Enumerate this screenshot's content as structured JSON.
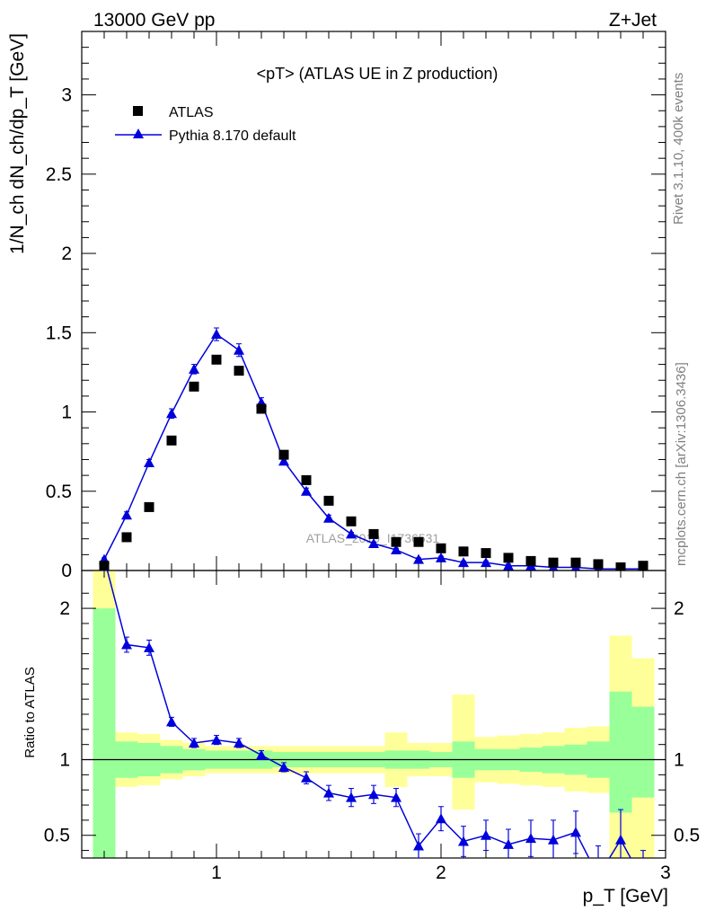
{
  "header": {
    "left": "13000 GeV pp",
    "right": "Z+Jet"
  },
  "side": {
    "rivet": "Rivet 3.1.10,  400k events",
    "mcplots": "mcplots.cern.ch [arXiv:1306.3436]"
  },
  "watermark": "ATLAS_2019_I1736531",
  "chart_data": [
    {
      "type": "scatter",
      "title": "<pT> (ATLAS UE in Z production)",
      "ylabel": "1/N_ch dN_ch/dp_T [GeV]",
      "xlim": [
        0.4,
        3.0
      ],
      "ylim": [
        0,
        3.4
      ],
      "yticks": [
        0,
        0.5,
        1,
        1.5,
        2,
        2.5,
        3
      ],
      "ytick_labels": [
        "0",
        "0.5",
        "1",
        "1.5",
        "2",
        "2.5",
        "3"
      ],
      "legend_position": "top-left",
      "x": [
        0.5,
        0.6,
        0.7,
        0.8,
        0.9,
        1.0,
        1.1,
        1.2,
        1.3,
        1.4,
        1.5,
        1.6,
        1.7,
        1.8,
        1.9,
        2.0,
        2.1,
        2.2,
        2.3,
        2.4,
        2.5,
        2.6,
        2.7,
        2.8,
        2.9
      ],
      "series": [
        {
          "name": "ATLAS",
          "marker": "square",
          "color": "#000000",
          "values": [
            0.03,
            0.21,
            0.4,
            0.82,
            1.16,
            1.33,
            1.26,
            1.02,
            0.73,
            0.57,
            0.44,
            0.31,
            0.23,
            0.18,
            0.18,
            0.14,
            0.12,
            0.11,
            0.08,
            0.06,
            0.05,
            0.05,
            0.04,
            0.02,
            0.03
          ]
        },
        {
          "name": "Pythia 8.170 default",
          "marker": "triangle",
          "color": "#0000dd",
          "values": [
            0.07,
            0.35,
            0.68,
            0.99,
            1.27,
            1.49,
            1.39,
            1.06,
            0.69,
            0.5,
            0.33,
            0.23,
            0.17,
            0.13,
            0.07,
            0.08,
            0.05,
            0.05,
            0.03,
            0.03,
            0.02,
            0.02,
            0.01,
            0.01,
            0.01
          ],
          "errors": [
            0.01,
            0.02,
            0.02,
            0.03,
            0.03,
            0.04,
            0.04,
            0.03,
            0.02,
            0.02,
            0.02,
            0.01,
            0.01,
            0.01,
            0.01,
            0.01,
            0.01,
            0.01,
            0.01,
            0.01,
            0.01,
            0.01,
            0.01,
            0.01,
            0.01
          ]
        }
      ]
    },
    {
      "type": "line",
      "ylabel": "Ratio to ATLAS",
      "xlabel": "p_T [GeV]",
      "xlim": [
        0.4,
        3.0
      ],
      "ylim": [
        0.35,
        2.25
      ],
      "xticks": [
        1,
        2,
        3
      ],
      "xtick_labels": [
        "1",
        "2",
        "3"
      ],
      "yticks": [
        0.5,
        1,
        2
      ],
      "ytick_labels": [
        "0.5",
        "1",
        "2"
      ],
      "band_edges": [
        0.45,
        0.55,
        0.65,
        0.75,
        0.85,
        0.95,
        1.05,
        1.15,
        1.25,
        1.35,
        1.45,
        1.55,
        1.65,
        1.75,
        1.85,
        1.95,
        2.05,
        2.15,
        2.25,
        2.35,
        2.45,
        2.55,
        2.65,
        2.75,
        2.85,
        2.95
      ],
      "band_stat": {
        "name": "stat",
        "color": "#99ff99",
        "lo": [
          0.35,
          0.88,
          0.89,
          0.91,
          0.93,
          0.94,
          0.94,
          0.94,
          0.95,
          0.95,
          0.95,
          0.95,
          0.95,
          0.94,
          0.94,
          0.95,
          0.88,
          0.93,
          0.93,
          0.92,
          0.91,
          0.9,
          0.88,
          0.65,
          0.75
        ],
        "hi": [
          2.0,
          1.12,
          1.11,
          1.09,
          1.07,
          1.06,
          1.06,
          1.06,
          1.05,
          1.05,
          1.05,
          1.05,
          1.05,
          1.06,
          1.06,
          1.05,
          1.12,
          1.07,
          1.07,
          1.08,
          1.09,
          1.1,
          1.12,
          1.45,
          1.35
        ]
      },
      "band_syst": {
        "name": "stat+syst",
        "color": "#ffff99",
        "lo": [
          0.35,
          0.82,
          0.83,
          0.87,
          0.89,
          0.91,
          0.91,
          0.91,
          0.91,
          0.91,
          0.91,
          0.91,
          0.91,
          0.82,
          0.89,
          0.89,
          0.67,
          0.85,
          0.84,
          0.83,
          0.82,
          0.79,
          0.78,
          0.35,
          0.35
        ],
        "hi": [
          2.25,
          1.18,
          1.17,
          1.13,
          1.11,
          1.09,
          1.09,
          1.09,
          1.09,
          1.09,
          1.09,
          1.09,
          1.09,
          1.18,
          1.11,
          1.11,
          1.43,
          1.15,
          1.16,
          1.17,
          1.18,
          1.21,
          1.22,
          1.82,
          1.67
        ]
      },
      "x": [
        0.5,
        0.6,
        0.7,
        0.8,
        0.9,
        1.0,
        1.1,
        1.2,
        1.3,
        1.4,
        1.5,
        1.6,
        1.7,
        1.8,
        1.9,
        2.0,
        2.1,
        2.2,
        2.3,
        2.4,
        2.5,
        2.6,
        2.7,
        2.8,
        2.9
      ],
      "series": [
        {
          "name": "Pythia 8.170 default",
          "color": "#0000dd",
          "values": [
            2.33,
            1.76,
            1.74,
            1.25,
            1.11,
            1.13,
            1.11,
            1.03,
            0.95,
            0.88,
            0.78,
            0.75,
            0.77,
            0.75,
            0.43,
            0.61,
            0.46,
            0.5,
            0.44,
            0.48,
            0.47,
            0.52,
            0.23,
            0.47,
            0.2
          ],
          "errors": [
            0.08,
            0.05,
            0.05,
            0.03,
            0.03,
            0.03,
            0.03,
            0.03,
            0.03,
            0.04,
            0.05,
            0.06,
            0.06,
            0.06,
            0.08,
            0.08,
            0.1,
            0.1,
            0.1,
            0.12,
            0.13,
            0.14,
            0.2,
            0.2,
            0.2
          ]
        }
      ]
    }
  ]
}
